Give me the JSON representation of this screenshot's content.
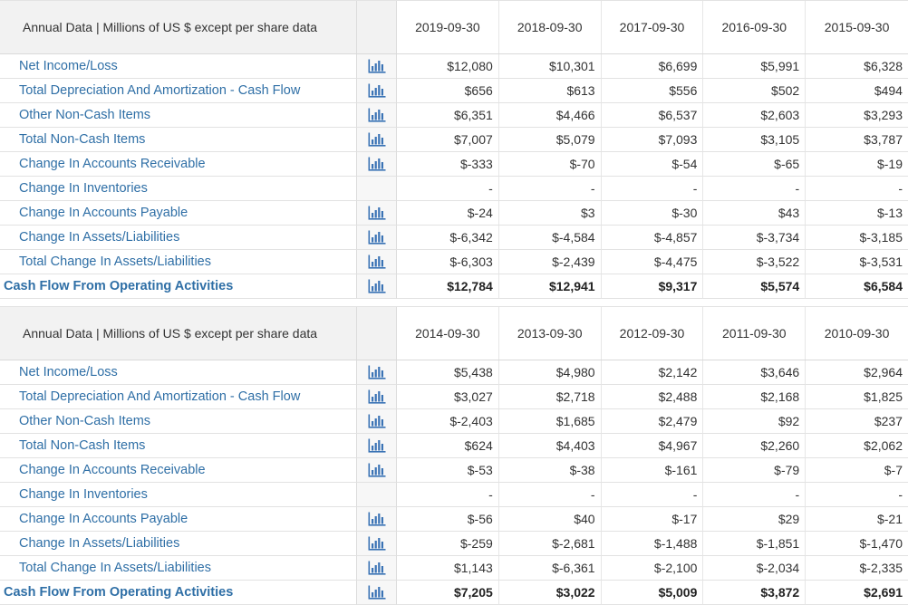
{
  "header_label": "Annual Data | Millions of US $ except per share data",
  "tables": [
    {
      "years": [
        "2019-09-30",
        "2018-09-30",
        "2017-09-30",
        "2016-09-30",
        "2015-09-30"
      ],
      "rows": [
        {
          "label": "Net Income/Loss",
          "icon": "bar-chart-icon",
          "values": [
            "$12,080",
            "$10,301",
            "$6,699",
            "$5,991",
            "$6,328"
          ]
        },
        {
          "label": "Total Depreciation And Amortization - Cash Flow",
          "icon": "bar-chart-icon",
          "values": [
            "$656",
            "$613",
            "$556",
            "$502",
            "$494"
          ]
        },
        {
          "label": "Other Non-Cash Items",
          "icon": "bar-chart-icon",
          "values": [
            "$6,351",
            "$4,466",
            "$6,537",
            "$2,603",
            "$3,293"
          ]
        },
        {
          "label": "Total Non-Cash Items",
          "icon": "bar-chart-icon",
          "values": [
            "$7,007",
            "$5,079",
            "$7,093",
            "$3,105",
            "$3,787"
          ]
        },
        {
          "label": "Change In Accounts Receivable",
          "icon": "bar-chart-icon",
          "values": [
            "$-333",
            "$-70",
            "$-54",
            "$-65",
            "$-19"
          ]
        },
        {
          "label": "Change In Inventories",
          "icon": "",
          "values": [
            "-",
            "-",
            "-",
            "-",
            "-"
          ]
        },
        {
          "label": "Change In Accounts Payable",
          "icon": "bar-chart-icon",
          "values": [
            "$-24",
            "$3",
            "$-30",
            "$43",
            "$-13"
          ]
        },
        {
          "label": "Change In Assets/Liabilities",
          "icon": "bar-chart-icon",
          "values": [
            "$-6,342",
            "$-4,584",
            "$-4,857",
            "$-3,734",
            "$-3,185"
          ]
        },
        {
          "label": "Total Change In Assets/Liabilities",
          "icon": "bar-chart-icon",
          "values": [
            "$-6,303",
            "$-2,439",
            "$-4,475",
            "$-3,522",
            "$-3,531"
          ]
        },
        {
          "label": "Cash Flow From Operating Activities",
          "icon": "bar-chart-icon",
          "total": true,
          "values": [
            "$12,784",
            "$12,941",
            "$9,317",
            "$5,574",
            "$6,584"
          ]
        }
      ]
    },
    {
      "years": [
        "2014-09-30",
        "2013-09-30",
        "2012-09-30",
        "2011-09-30",
        "2010-09-30"
      ],
      "rows": [
        {
          "label": "Net Income/Loss",
          "icon": "bar-chart-icon",
          "values": [
            "$5,438",
            "$4,980",
            "$2,142",
            "$3,646",
            "$2,964"
          ]
        },
        {
          "label": "Total Depreciation And Amortization - Cash Flow",
          "icon": "bar-chart-icon",
          "values": [
            "$3,027",
            "$2,718",
            "$2,488",
            "$2,168",
            "$1,825"
          ]
        },
        {
          "label": "Other Non-Cash Items",
          "icon": "bar-chart-icon",
          "values": [
            "$-2,403",
            "$1,685",
            "$2,479",
            "$92",
            "$237"
          ]
        },
        {
          "label": "Total Non-Cash Items",
          "icon": "bar-chart-icon",
          "values": [
            "$624",
            "$4,403",
            "$4,967",
            "$2,260",
            "$2,062"
          ]
        },
        {
          "label": "Change In Accounts Receivable",
          "icon": "bar-chart-icon",
          "values": [
            "$-53",
            "$-38",
            "$-161",
            "$-79",
            "$-7"
          ]
        },
        {
          "label": "Change In Inventories",
          "icon": "",
          "values": [
            "-",
            "-",
            "-",
            "-",
            "-"
          ]
        },
        {
          "label": "Change In Accounts Payable",
          "icon": "bar-chart-icon",
          "values": [
            "$-56",
            "$40",
            "$-17",
            "$29",
            "$-21"
          ]
        },
        {
          "label": "Change In Assets/Liabilities",
          "icon": "bar-chart-icon",
          "values": [
            "$-259",
            "$-2,681",
            "$-1,488",
            "$-1,851",
            "$-1,470"
          ]
        },
        {
          "label": "Total Change In Assets/Liabilities",
          "icon": "bar-chart-icon",
          "values": [
            "$1,143",
            "$-6,361",
            "$-2,100",
            "$-2,034",
            "$-2,335"
          ]
        },
        {
          "label": "Cash Flow From Operating Activities",
          "icon": "bar-chart-icon",
          "total": true,
          "values": [
            "$7,205",
            "$3,022",
            "$5,009",
            "$3,872",
            "$2,691"
          ]
        }
      ]
    }
  ],
  "colors": {
    "link": "#2f6fa6",
    "icon": "#3a73b5",
    "header_bg": "#f2f2f2"
  }
}
